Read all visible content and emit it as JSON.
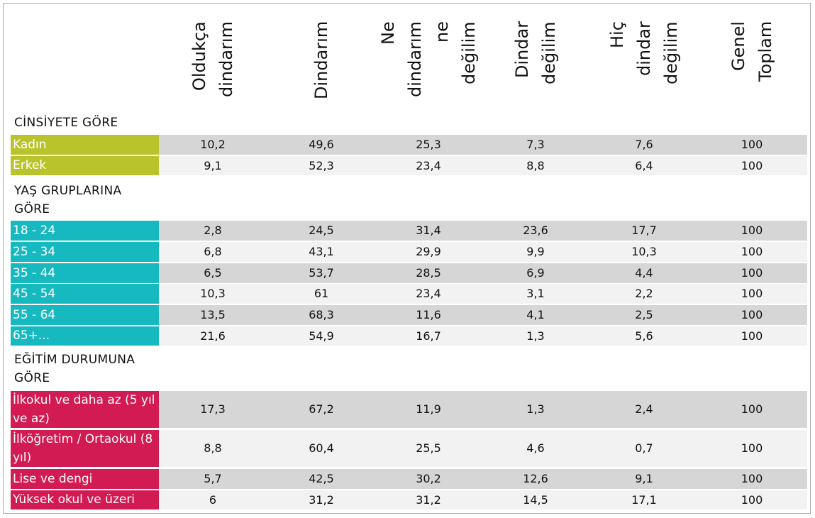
{
  "columns": [
    [
      "Oldukça",
      "dindarım"
    ],
    [
      "Dindarım"
    ],
    [
      "Ne",
      "dindarım",
      "ne",
      "değilim"
    ],
    [
      "Dindar",
      "değilim"
    ],
    [
      "Hiç",
      "dindar",
      "değilim"
    ],
    [
      "Genel",
      "Toplam"
    ]
  ],
  "sections": [
    {
      "title": "CİNSİYETE GÖRE",
      "color": "green"
    },
    {
      "title": "YAŞ GRUPLARINA GÖRE",
      "color": "teal"
    },
    {
      "title": "EĞİTİM DURUMUNA GÖRE",
      "color": "red"
    }
  ],
  "chart_data": {
    "type": "table",
    "columns": [
      "Oldukça dindarım",
      "Dindarım",
      "Ne dindarım ne değilim",
      "Dindar değilim",
      "Hiç dindar değilim",
      "Genel Toplam"
    ],
    "groups": [
      {
        "name": "CİNSİYETE GÖRE",
        "rows": [
          {
            "label": "Kadın",
            "values": [
              "10,2",
              "49,6",
              "25,3",
              "7,3",
              "7,6",
              "100"
            ]
          },
          {
            "label": "Erkek",
            "values": [
              "9,1",
              "52,3",
              "23,4",
              "8,8",
              "6,4",
              "100"
            ]
          }
        ]
      },
      {
        "name": "YAŞ GRUPLARINA GÖRE",
        "rows": [
          {
            "label": "18 - 24",
            "values": [
              "2,8",
              "24,5",
              "31,4",
              "23,6",
              "17,7",
              "100"
            ]
          },
          {
            "label": "25 - 34",
            "values": [
              "6,8",
              "43,1",
              "29,9",
              "9,9",
              "10,3",
              "100"
            ]
          },
          {
            "label": "35 - 44",
            "values": [
              "6,5",
              "53,7",
              "28,5",
              "6,9",
              "4,4",
              "100"
            ]
          },
          {
            "label": "45 - 54",
            "values": [
              "10,3",
              "61",
              "23,4",
              "3,1",
              "2,2",
              "100"
            ]
          },
          {
            "label": "55 - 64",
            "values": [
              "13,5",
              "68,3",
              "11,6",
              "4,1",
              "2,5",
              "100"
            ]
          },
          {
            "label": "65+...",
            "values": [
              "21,6",
              "54,9",
              "16,7",
              "1,3",
              "5,6",
              "100"
            ]
          }
        ]
      },
      {
        "name": "EĞİTİM DURUMUNA GÖRE",
        "rows": [
          {
            "label": "İlkokul ve daha az (5 yıl ve az)",
            "values": [
              "17,3",
              "67,2",
              "11,9",
              "1,3",
              "2,4",
              "100"
            ]
          },
          {
            "label": "İlköğretim / Ortaokul (8 yıl)",
            "values": [
              "8,8",
              "60,4",
              "25,5",
              "4,6",
              "0,7",
              "100"
            ]
          },
          {
            "label": "Lise ve dengi",
            "values": [
              "5,7",
              "42,5",
              "30,2",
              "12,6",
              "9,1",
              "100"
            ]
          },
          {
            "label": "Yüksek okul ve üzeri",
            "values": [
              "6",
              "31,2",
              "31,2",
              "14,5",
              "17,1",
              "100"
            ]
          }
        ]
      }
    ]
  }
}
